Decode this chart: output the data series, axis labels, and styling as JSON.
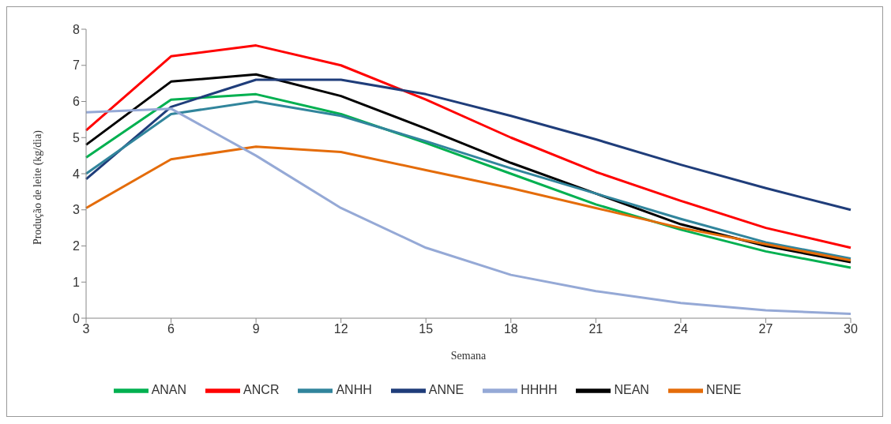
{
  "chart_data": {
    "type": "line",
    "xlabel": "Semana",
    "ylabel": "Produção de leite (kg/dia)",
    "categories": [
      "3",
      "6",
      "9",
      "12",
      "15",
      "18",
      "21",
      "24",
      "27",
      "30"
    ],
    "ylim": [
      0,
      8
    ],
    "yticks": [
      0,
      1,
      2,
      3,
      4,
      5,
      6,
      7,
      8
    ],
    "grid": false,
    "legend": "bottom",
    "marker": "none",
    "line_style": "solid",
    "series": [
      {
        "name": "NEAN",
        "color": "#000000",
        "values": [
          4.8,
          6.55,
          6.75,
          6.15,
          5.25,
          4.3,
          3.45,
          2.6,
          2.0,
          1.55
        ]
      },
      {
        "name": "ANCR",
        "color": "#ff0000",
        "values": [
          5.2,
          7.25,
          7.55,
          7.0,
          6.05,
          5.0,
          4.05,
          3.25,
          2.5,
          1.95
        ]
      },
      {
        "name": "ANAN",
        "color": "#00b050",
        "values": [
          4.45,
          6.05,
          6.2,
          5.65,
          4.85,
          4.0,
          3.15,
          2.45,
          1.85,
          1.4
        ]
      },
      {
        "name": "ANNE",
        "color": "#1f3d7a",
        "values": [
          3.85,
          5.85,
          6.6,
          6.6,
          6.2,
          5.6,
          4.95,
          4.25,
          3.6,
          3.0
        ]
      },
      {
        "name": "ANHH",
        "color": "#31859c",
        "values": [
          4.0,
          5.65,
          6.0,
          5.6,
          4.9,
          4.15,
          3.45,
          2.75,
          2.1,
          1.65
        ]
      },
      {
        "name": "NENE",
        "color": "#e46c0a",
        "values": [
          3.05,
          4.4,
          4.75,
          4.6,
          4.1,
          3.6,
          3.05,
          2.5,
          2.05,
          1.6
        ]
      },
      {
        "name": "HHHH",
        "color": "#95a9d6",
        "values": [
          5.7,
          5.8,
          4.5,
          3.05,
          1.95,
          1.2,
          0.75,
          0.42,
          0.22,
          0.12
        ]
      }
    ]
  }
}
